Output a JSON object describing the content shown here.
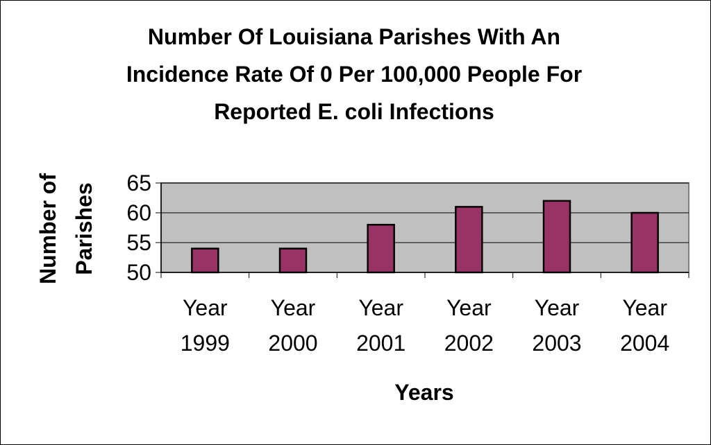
{
  "chart_data": {
    "type": "bar",
    "title_lines": [
      "Number Of Louisiana Parishes With An",
      "Incidence Rate Of 0 Per 100,000 People For",
      "Reported E. coli Infections"
    ],
    "xlabel": "Years",
    "ylabel_lines": [
      "Number of",
      "Parishes"
    ],
    "categories": [
      [
        "Year",
        "1999"
      ],
      [
        "Year",
        "2000"
      ],
      [
        "Year",
        "2001"
      ],
      [
        "Year",
        "2002"
      ],
      [
        "Year",
        "2003"
      ],
      [
        "Year",
        "2004"
      ]
    ],
    "values": [
      54,
      54,
      58,
      61,
      62,
      60
    ],
    "ylim": [
      50,
      65
    ],
    "yticks": [
      50,
      55,
      60,
      65
    ],
    "grid": true,
    "legend": "none",
    "colors": {
      "bar": "#993366",
      "plot_bg": "#c0c0c0",
      "border": "#000000"
    }
  }
}
